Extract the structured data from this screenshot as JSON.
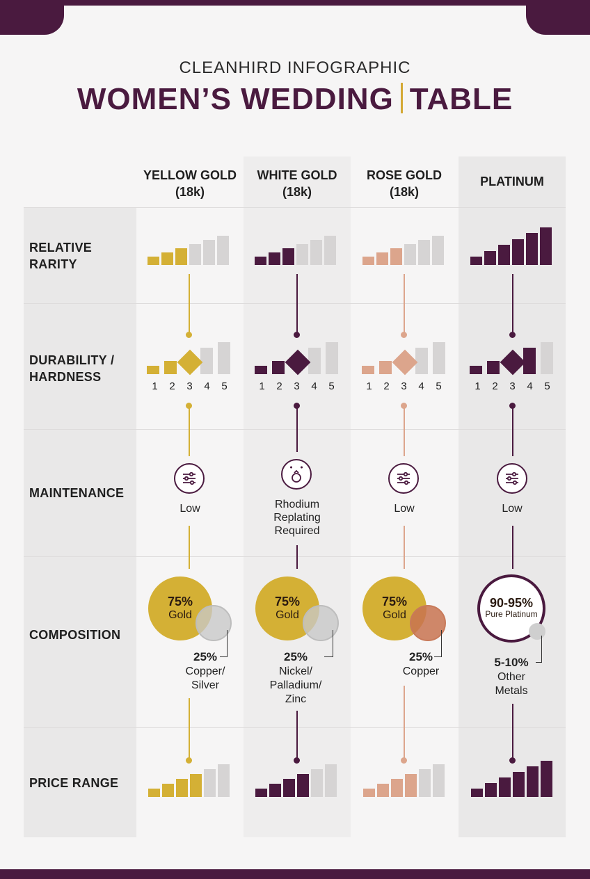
{
  "header": {
    "kicker": "CLEANHIRD INFOGRAPHIC",
    "title_left": "WOMEN’S WEDDING",
    "title_right": "TABLE"
  },
  "columns": [
    {
      "line1": "YELLOW GOLD",
      "line2": "(18k)",
      "color": "#d4b035"
    },
    {
      "line1": "WHITE GOLD",
      "line2": "(18k)",
      "color": "#4a1a3f"
    },
    {
      "line1": "ROSE GOLD",
      "line2": "(18k)",
      "color": "#dca58c"
    },
    {
      "line1": "PLATINUM",
      "line2": "",
      "color": "#4a1a3f"
    }
  ],
  "rows": {
    "rarity": {
      "line1": "RELATIVE",
      "line2": "RARITY"
    },
    "durability": {
      "line1": "DURABILITY /",
      "line2": "HARDNESS"
    },
    "maintenance": {
      "line1": "MAINTENANCE"
    },
    "composition": {
      "line1": "COMPOSITION"
    },
    "price": {
      "line1": "PRICE RANGE"
    }
  },
  "scale": [
    "1",
    "2",
    "3",
    "4",
    "5"
  ],
  "rarity_levels": [
    3,
    3,
    3,
    6
  ],
  "durability_levels": [
    3,
    3,
    3,
    4
  ],
  "price_levels": [
    4,
    4,
    4,
    6
  ],
  "maintenance": [
    {
      "icon": "sliders-icon",
      "lines": [
        "Low"
      ]
    },
    {
      "icon": "ring-sparkle-icon",
      "lines": [
        "Rhodium",
        "Replating",
        "Required"
      ]
    },
    {
      "icon": "sliders-icon",
      "lines": [
        "Low"
      ]
    },
    {
      "icon": "sliders-icon",
      "lines": [
        "Low"
      ]
    }
  ],
  "composition": [
    {
      "main_pct": "75%",
      "main_label": "Gold",
      "alloy_pct": "25%",
      "alloy_lines": [
        "Copper/",
        "Silver"
      ]
    },
    {
      "main_pct": "75%",
      "main_label": "Gold",
      "alloy_pct": "25%",
      "alloy_lines": [
        "Nickel/",
        "Palladium/",
        "Zinc"
      ]
    },
    {
      "main_pct": "75%",
      "main_label": "Gold",
      "alloy_pct": "25%",
      "alloy_lines": [
        "Copper"
      ]
    },
    {
      "main_pct": "90-95%",
      "main_label": "Pure Platinum",
      "alloy_pct": "5-10%",
      "alloy_lines": [
        "Other",
        "Metals"
      ]
    }
  ],
  "colors": {
    "plum": "#4a1a3f",
    "gold": "#d4b035",
    "rose": "#dca58c",
    "grey": "#d6d4d4",
    "copper": "#c87a5a"
  }
}
